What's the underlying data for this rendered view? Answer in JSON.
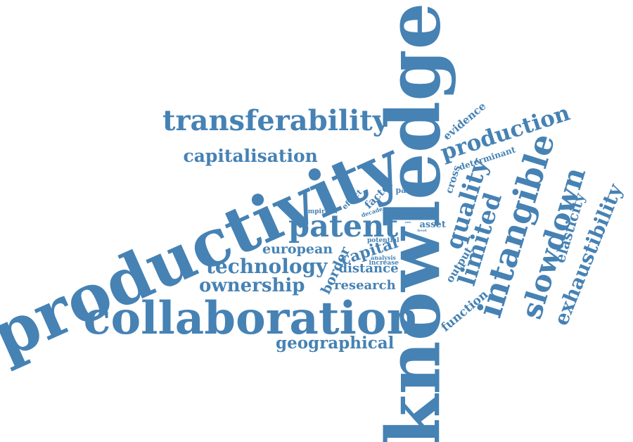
{
  "color": "#4682B4",
  "words": [
    {
      "text": "knowledge"
    },
    {
      "text": "productivity"
    },
    {
      "text": "collaboration"
    },
    {
      "text": "transferability"
    },
    {
      "text": "patent"
    },
    {
      "text": "capitalisation"
    },
    {
      "text": "technology"
    },
    {
      "text": "ownership"
    },
    {
      "text": "geographical"
    },
    {
      "text": "intangible"
    },
    {
      "text": "slowdown"
    },
    {
      "text": "production"
    },
    {
      "text": "limited"
    },
    {
      "text": "quality"
    },
    {
      "text": "exhaustibility"
    },
    {
      "text": "elasticity"
    },
    {
      "text": "european"
    },
    {
      "text": "capital"
    },
    {
      "text": "distance"
    },
    {
      "text": "research"
    },
    {
      "text": "border"
    },
    {
      "text": "function"
    },
    {
      "text": "output"
    },
    {
      "text": "evidence"
    },
    {
      "text": "determinant"
    },
    {
      "text": "cross"
    },
    {
      "text": "factor"
    },
    {
      "text": "effect"
    },
    {
      "text": "partner"
    },
    {
      "text": "empirical"
    },
    {
      "text": "total"
    },
    {
      "text": "asset"
    },
    {
      "text": "decade"
    },
    {
      "text": "potential"
    },
    {
      "text": "analysis"
    },
    {
      "text": "increase"
    },
    {
      "text": "level"
    },
    {
      "text": "rate"
    }
  ]
}
